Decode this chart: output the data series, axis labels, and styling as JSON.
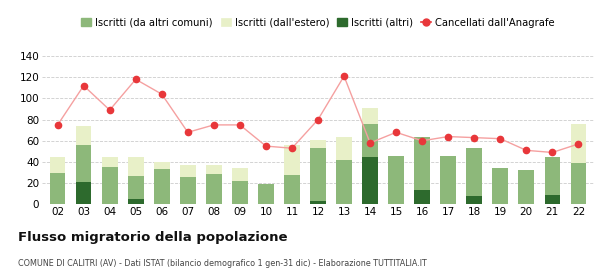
{
  "years": [
    "02",
    "03",
    "04",
    "05",
    "06",
    "07",
    "08",
    "09",
    "10",
    "11",
    "12",
    "13",
    "14",
    "15",
    "16",
    "17",
    "18",
    "19",
    "20",
    "21",
    "22"
  ],
  "iscritti_altri_comuni": [
    30,
    35,
    35,
    22,
    33,
    26,
    29,
    22,
    19,
    28,
    50,
    42,
    31,
    46,
    50,
    46,
    45,
    34,
    32,
    36,
    39
  ],
  "iscritti_estero": [
    15,
    18,
    10,
    18,
    7,
    11,
    8,
    12,
    0,
    28,
    8,
    22,
    15,
    0,
    0,
    0,
    0,
    0,
    0,
    0,
    37
  ],
  "iscritti_altri": [
    0,
    21,
    0,
    5,
    0,
    0,
    0,
    0,
    0,
    0,
    3,
    0,
    45,
    0,
    14,
    0,
    8,
    0,
    0,
    9,
    0
  ],
  "cancellati": [
    75,
    112,
    89,
    118,
    104,
    68,
    75,
    75,
    55,
    53,
    80,
    121,
    58,
    68,
    60,
    64,
    63,
    62,
    51,
    49,
    57
  ],
  "color_comuni": "#8db87a",
  "color_estero": "#e8f0c8",
  "color_altri": "#2d6a2d",
  "color_cancel": "#e8373a",
  "color_cancel_line": "#f5a0a0",
  "bg_color": "#ffffff",
  "grid_color": "#cccccc",
  "title": "Flusso migratorio della popolazione",
  "subtitle": "COMUNE DI CALITRI (AV) - Dati ISTAT (bilancio demografico 1 gen-31 dic) - Elaborazione TUTTITALIA.IT",
  "legend_labels": [
    "Iscritti (da altri comuni)",
    "Iscritti (dall'estero)",
    "Iscritti (altri)",
    "Cancellati dall'Anagrafe"
  ],
  "ylim": [
    0,
    140
  ],
  "yticks": [
    0,
    20,
    40,
    60,
    80,
    100,
    120,
    140
  ]
}
